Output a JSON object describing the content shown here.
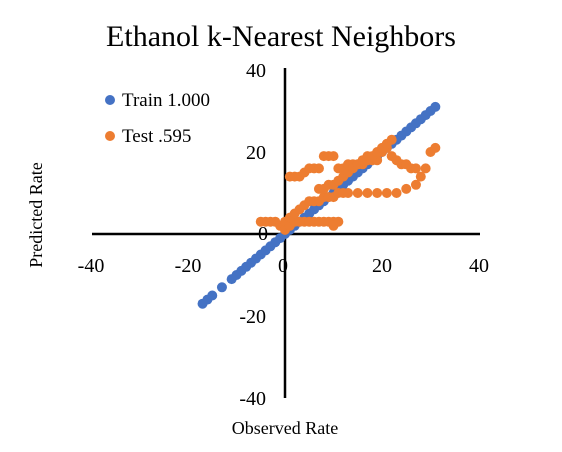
{
  "chart_data": {
    "type": "scatter",
    "title": "Ethanol k-Nearest Neighbors",
    "xlabel": "Observed Rate",
    "ylabel": "Predicted Rate",
    "xlim": [
      -40,
      40
    ],
    "ylim": [
      -40,
      40
    ],
    "x_ticks": [
      "-40",
      "-20",
      "0",
      "20",
      "40"
    ],
    "y_ticks": [
      "40",
      "20",
      "0",
      "-20",
      "-40"
    ],
    "grid": false,
    "legend_position": "top-left",
    "series": [
      {
        "name": "Train 1.000",
        "color": "#4472C4",
        "points": [
          [
            -17,
            -17
          ],
          [
            -16,
            -16
          ],
          [
            -15,
            -15
          ],
          [
            -13,
            -13
          ],
          [
            -11,
            -11
          ],
          [
            -10,
            -10
          ],
          [
            -9,
            -9
          ],
          [
            -8,
            -8
          ],
          [
            -7,
            -7
          ],
          [
            -6,
            -6
          ],
          [
            -5,
            -5
          ],
          [
            -4,
            -4
          ],
          [
            -3,
            -3
          ],
          [
            -2,
            -2
          ],
          [
            -1,
            -1
          ],
          [
            0,
            0
          ],
          [
            1,
            1
          ],
          [
            2,
            2
          ],
          [
            3,
            3
          ],
          [
            4,
            4
          ],
          [
            5,
            5
          ],
          [
            6,
            6
          ],
          [
            7,
            7
          ],
          [
            8,
            8
          ],
          [
            9,
            9
          ],
          [
            10,
            10
          ],
          [
            11,
            11
          ],
          [
            12,
            12
          ],
          [
            13,
            13
          ],
          [
            14,
            14
          ],
          [
            15,
            15
          ],
          [
            16,
            16
          ],
          [
            17,
            17
          ],
          [
            18,
            18
          ],
          [
            19,
            19
          ],
          [
            20,
            20
          ],
          [
            21,
            21
          ],
          [
            22,
            22
          ],
          [
            23,
            23
          ],
          [
            24,
            24
          ],
          [
            25,
            25
          ],
          [
            26,
            26
          ],
          [
            27,
            27
          ],
          [
            28,
            28
          ],
          [
            29,
            29
          ],
          [
            30,
            30
          ],
          [
            31,
            31
          ]
        ]
      },
      {
        "name": "Test .595",
        "color": "#ED7D31",
        "points": [
          [
            -5,
            3
          ],
          [
            -4,
            3
          ],
          [
            -3,
            3
          ],
          [
            -2,
            3
          ],
          [
            -1,
            2
          ],
          [
            0,
            1
          ],
          [
            0,
            3
          ],
          [
            1,
            2
          ],
          [
            2,
            3
          ],
          [
            1,
            4
          ],
          [
            3,
            3
          ],
          [
            4,
            3
          ],
          [
            5,
            3
          ],
          [
            6,
            3
          ],
          [
            7,
            3
          ],
          [
            8,
            3
          ],
          [
            9,
            3
          ],
          [
            10,
            3
          ],
          [
            11,
            3
          ],
          [
            10,
            2
          ],
          [
            2,
            5
          ],
          [
            3,
            6
          ],
          [
            4,
            7
          ],
          [
            5,
            8
          ],
          [
            6,
            8
          ],
          [
            7,
            8
          ],
          [
            8,
            9
          ],
          [
            9,
            9
          ],
          [
            10,
            9
          ],
          [
            11,
            10
          ],
          [
            12,
            10
          ],
          [
            13,
            10
          ],
          [
            15,
            10
          ],
          [
            17,
            10
          ],
          [
            19,
            10
          ],
          [
            21,
            10
          ],
          [
            23,
            10
          ],
          [
            25,
            11
          ],
          [
            27,
            12
          ],
          [
            28,
            14
          ],
          [
            29,
            16
          ],
          [
            30,
            20
          ],
          [
            31,
            21
          ],
          [
            1,
            14
          ],
          [
            2,
            14
          ],
          [
            3,
            14
          ],
          [
            4,
            15
          ],
          [
            5,
            16
          ],
          [
            6,
            16
          ],
          [
            7,
            16
          ],
          [
            8,
            19
          ],
          [
            9,
            19
          ],
          [
            10,
            19
          ],
          [
            11,
            16
          ],
          [
            12,
            16
          ],
          [
            13,
            17
          ],
          [
            14,
            17
          ],
          [
            15,
            17
          ],
          [
            16,
            17
          ],
          [
            17,
            18
          ],
          [
            18,
            18
          ],
          [
            19,
            18
          ],
          [
            20,
            20
          ],
          [
            21,
            21
          ],
          [
            22,
            19
          ],
          [
            23,
            18
          ],
          [
            24,
            17
          ],
          [
            25,
            17
          ],
          [
            26,
            16
          ],
          [
            27,
            16
          ],
          [
            7,
            11
          ],
          [
            8,
            11
          ],
          [
            9,
            12
          ],
          [
            10,
            12
          ],
          [
            11,
            13
          ],
          [
            12,
            14
          ],
          [
            13,
            15
          ],
          [
            14,
            16
          ],
          [
            15,
            17
          ],
          [
            16,
            18
          ],
          [
            17,
            19
          ],
          [
            18,
            19
          ],
          [
            19,
            20
          ],
          [
            20,
            21
          ],
          [
            21,
            22
          ],
          [
            22,
            23
          ]
        ]
      }
    ]
  }
}
